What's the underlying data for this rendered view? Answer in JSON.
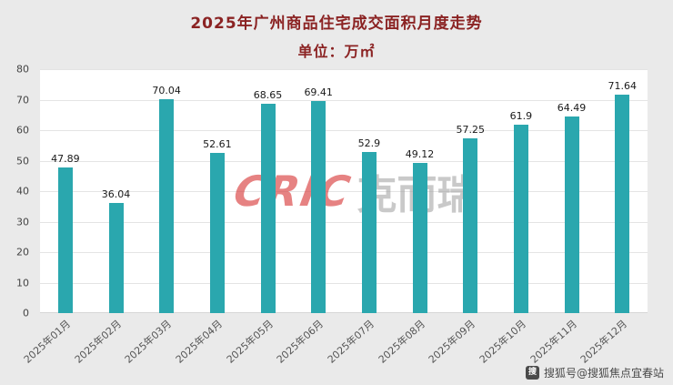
{
  "chart_data": {
    "type": "bar",
    "title": "2025年广州商品住宅成交面积月度走势",
    "subtitle": "单位：万㎡",
    "categories": [
      "2025年01月",
      "2025年02月",
      "2025年03月",
      "2025年04月",
      "2025年05月",
      "2025年06月",
      "2025年07月",
      "2025年08月",
      "2025年09月",
      "2025年10月",
      "2025年11月",
      "2025年12月"
    ],
    "values": [
      47.89,
      36.04,
      70.04,
      52.61,
      68.65,
      69.41,
      52.9,
      49.12,
      57.25,
      61.9,
      64.49,
      71.64
    ],
    "ylim": [
      0,
      80
    ],
    "y_tick_step": 10,
    "grid": true,
    "legend": "none",
    "bar_color": "#2AA7AE",
    "title_color": "#8B2323",
    "plot_background": "#FFFFFF",
    "figure_background": "#EAEAEA"
  },
  "watermark": {
    "brand": "CRIC",
    "brand_cn": "克而瑞",
    "brand_color": "#D94040",
    "brand_cn_color": "#9E9E9E"
  },
  "footer": {
    "credit": "搜狐号@搜狐焦点宜春站",
    "icon_letter": "搜"
  }
}
